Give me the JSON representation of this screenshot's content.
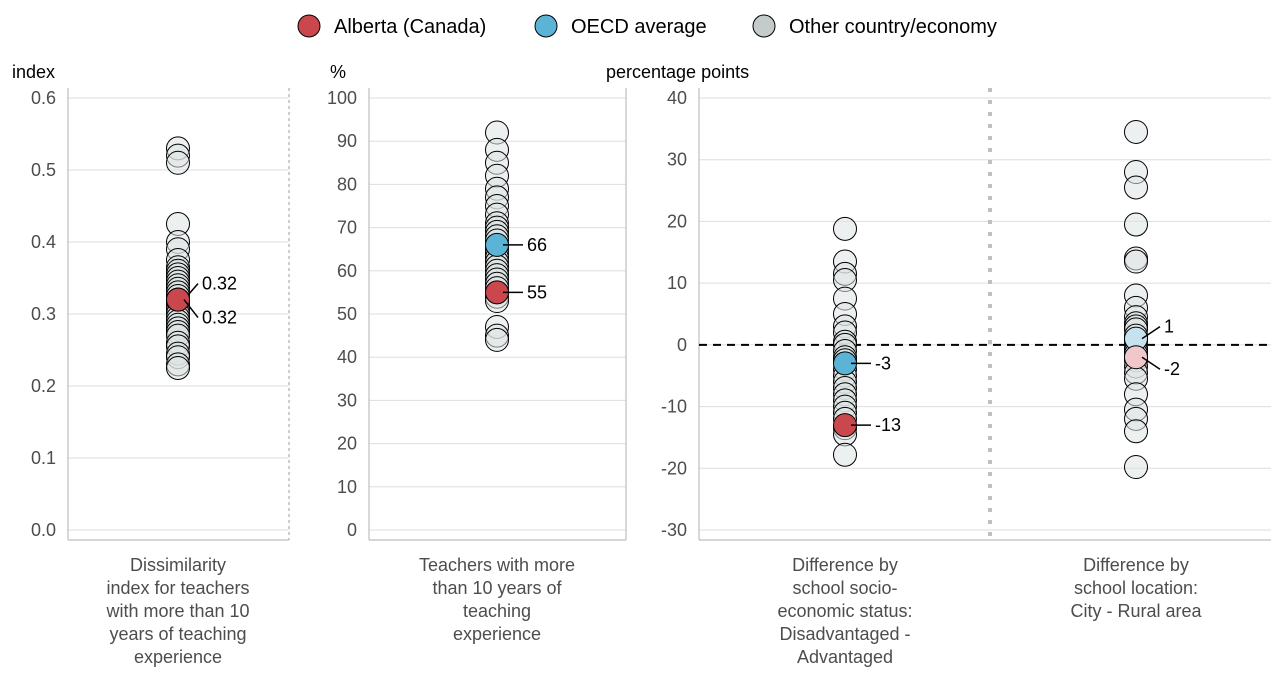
{
  "legend": [
    {
      "name": "Alberta (Canada)",
      "color": "#c9474d"
    },
    {
      "name": "OECD average",
      "color": "#5bb4d6"
    },
    {
      "name": "Other country/economy",
      "color": "#c4cbcb"
    }
  ],
  "chart_data": [
    {
      "type": "scatter",
      "unit_label": "index",
      "ylim": [
        0,
        0.6
      ],
      "yticks": [
        0.0,
        0.1,
        0.2,
        0.3,
        0.4,
        0.5,
        0.6
      ],
      "ytick_labels": [
        "0.0",
        "0.1",
        "0.2",
        "0.3",
        "0.4",
        "0.5",
        "0.6"
      ],
      "grid": true,
      "categories": [
        {
          "label_lines": [
            "Dissimilarity",
            "index for teachers",
            "with more than 10",
            "years of teaching",
            "experience"
          ],
          "others": [
            0.53,
            0.52,
            0.51,
            0.425,
            0.4,
            0.39,
            0.375,
            0.365,
            0.36,
            0.355,
            0.35,
            0.345,
            0.34,
            0.335,
            0.33,
            0.325,
            0.32,
            0.315,
            0.31,
            0.305,
            0.3,
            0.295,
            0.29,
            0.285,
            0.28,
            0.275,
            0.27,
            0.26,
            0.255,
            0.245,
            0.24,
            0.23,
            0.225
          ],
          "highlights": [
            {
              "series": "OECD average",
              "value": 0.32,
              "label": "0.32"
            },
            {
              "series": "Alberta (Canada)",
              "value": 0.32,
              "label": "0.32"
            }
          ]
        }
      ]
    },
    {
      "type": "scatter",
      "unit_label": "%",
      "ylim": [
        0,
        100
      ],
      "yticks": [
        0,
        10,
        20,
        30,
        40,
        50,
        60,
        70,
        80,
        90,
        100
      ],
      "ytick_labels": [
        "0",
        "10",
        "20",
        "30",
        "40",
        "50",
        "60",
        "70",
        "80",
        "90",
        "100"
      ],
      "grid": true,
      "categories": [
        {
          "label_lines": [
            "Teachers with more",
            "than 10 years of",
            "teaching",
            "experience"
          ],
          "others": [
            92,
            88,
            85,
            82,
            79,
            77,
            75,
            73,
            71,
            70,
            69,
            68,
            67,
            65,
            64,
            63,
            62,
            61,
            60,
            59,
            58,
            57,
            56,
            54,
            53,
            47,
            45,
            44
          ],
          "highlights": [
            {
              "series": "OECD average",
              "value": 66,
              "label": "66"
            },
            {
              "series": "Alberta (Canada)",
              "value": 55,
              "label": "55"
            }
          ]
        }
      ]
    },
    {
      "type": "scatter",
      "unit_label": "percentage points",
      "ylim": [
        -30,
        40
      ],
      "yticks": [
        -30,
        -20,
        -10,
        0,
        10,
        20,
        30,
        40
      ],
      "ytick_labels": [
        "-30",
        "-20",
        "-10",
        "0",
        "10",
        "20",
        "30",
        "40"
      ],
      "grid": true,
      "reference_line": 0,
      "categories": [
        {
          "label_lines": [
            "Difference by",
            "school socio-",
            "economic status:",
            "Disadvantaged -",
            "Advantaged"
          ],
          "others": [
            18.8,
            13.5,
            11.5,
            10.5,
            7.5,
            5,
            3,
            2,
            0.5,
            0,
            -1,
            -2,
            -2.5,
            -4,
            -5,
            -6,
            -7,
            -8,
            -9,
            -10,
            -11,
            -12,
            -13.5,
            -14.5,
            -17.8
          ],
          "highlights": [
            {
              "series": "OECD average",
              "value": -3,
              "label": "-3"
            },
            {
              "series": "Alberta (Canada)",
              "value": -13,
              "label": "-13"
            }
          ]
        },
        {
          "label_lines": [
            "Difference by",
            "school location:",
            "City - Rural area"
          ],
          "others": [
            34.5,
            28,
            25.5,
            19.5,
            14,
            13.5,
            8,
            6,
            4.5,
            3.5,
            3,
            2.5,
            1.5,
            0.5,
            -0.5,
            -1,
            -1.5,
            -2.5,
            -3.5,
            -4.5,
            -5.5,
            -8,
            -10.5,
            -12,
            -14,
            -19.8
          ],
          "highlights": [
            {
              "series": "OECD average",
              "value": 1,
              "label": "1",
              "faded": true
            },
            {
              "series": "Alberta (Canada)",
              "value": -2,
              "label": "-2",
              "faded": true
            }
          ]
        }
      ]
    }
  ]
}
